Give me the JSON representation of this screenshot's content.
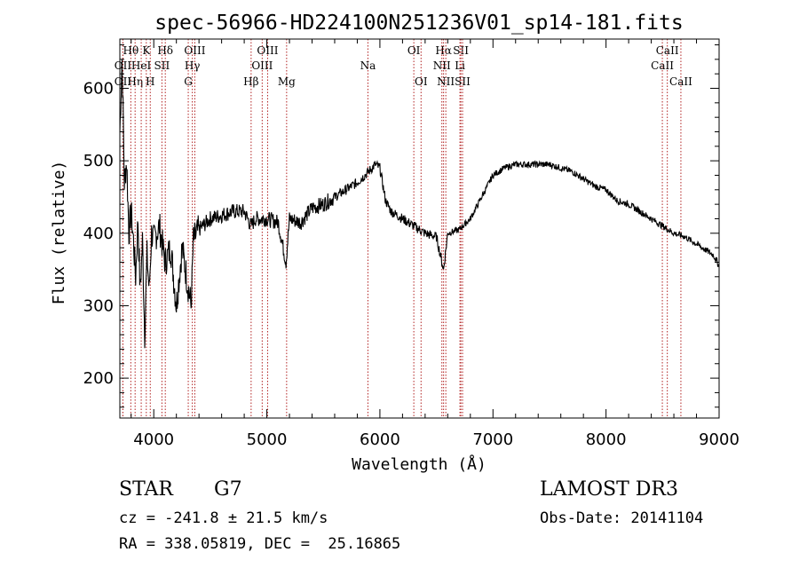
{
  "chart_data": {
    "type": "line",
    "title": "spec-56966-HD224100N251236V01_sp14-181.fits",
    "xlabel": "Wavelength (Å)",
    "ylabel": "Flux (relative)",
    "xlim": [
      3700,
      9000
    ],
    "ylim": [
      145,
      668
    ],
    "xticks": [
      4000,
      5000,
      6000,
      7000,
      8000,
      9000
    ],
    "yticks": [
      200,
      300,
      400,
      500,
      600
    ],
    "grid": false,
    "series": [
      {
        "name": "spectrum",
        "x": [
          3700,
          3720,
          3740,
          3760,
          3780,
          3800,
          3820,
          3840,
          3860,
          3880,
          3900,
          3920,
          3940,
          3960,
          3980,
          4000,
          4050,
          4100,
          4150,
          4200,
          4250,
          4300,
          4330,
          4350,
          4400,
          4500,
          4600,
          4700,
          4800,
          4860,
          4900,
          5000,
          5100,
          5170,
          5200,
          5300,
          5400,
          5500,
          5600,
          5700,
          5800,
          5900,
          5960,
          6000,
          6050,
          6100,
          6200,
          6300,
          6400,
          6500,
          6563,
          6600,
          6700,
          6800,
          6900,
          7000,
          7100,
          7200,
          7300,
          7400,
          7500,
          7600,
          7700,
          7800,
          7900,
          8000,
          8100,
          8200,
          8300,
          8400,
          8500,
          8600,
          8700,
          8800,
          8900,
          8950,
          9000
        ],
        "y": [
          540,
          640,
          470,
          500,
          400,
          430,
          390,
          340,
          420,
          320,
          390,
          260,
          370,
          320,
          400,
          390,
          410,
          360,
          380,
          300,
          380,
          330,
          300,
          390,
          405,
          420,
          425,
          430,
          430,
          410,
          420,
          420,
          415,
          360,
          420,
          415,
          435,
          440,
          450,
          460,
          470,
          485,
          495,
          490,
          445,
          430,
          420,
          410,
          400,
          395,
          350,
          400,
          405,
          420,
          450,
          480,
          490,
          495,
          495,
          495,
          495,
          490,
          485,
          475,
          465,
          460,
          445,
          440,
          430,
          420,
          410,
          400,
          395,
          385,
          375,
          370,
          355
        ]
      }
    ],
    "lines": [
      {
        "name": "Hθ",
        "x": 3797,
        "row": 1
      },
      {
        "name": "OII",
        "x": 3727,
        "row": 2
      },
      {
        "name": "OII",
        "x": 3727,
        "row": 3
      },
      {
        "name": "Hη",
        "x": 3835,
        "row": 3
      },
      {
        "name": "K",
        "x": 3934,
        "row": 1
      },
      {
        "name": "HeI",
        "x": 3889,
        "row": 2
      },
      {
        "name": "SII",
        "x": 4072,
        "row": 2
      },
      {
        "name": "H",
        "x": 3969,
        "row": 3
      },
      {
        "name": "Hδ",
        "x": 4102,
        "row": 1
      },
      {
        "name": "OIII",
        "x": 4363,
        "row": 1
      },
      {
        "name": "Hγ",
        "x": 4341,
        "row": 2
      },
      {
        "name": "G",
        "x": 4305,
        "row": 3
      },
      {
        "name": "Hβ",
        "x": 4861,
        "row": 3
      },
      {
        "name": "OIII",
        "x": 5007,
        "row": 1
      },
      {
        "name": "OIII",
        "x": 4959,
        "row": 2
      },
      {
        "name": "Mg",
        "x": 5175,
        "row": 3
      },
      {
        "name": "Na",
        "x": 5894,
        "row": 2
      },
      {
        "name": "OI",
        "x": 6300,
        "row": 1
      },
      {
        "name": "OI",
        "x": 6364,
        "row": 3
      },
      {
        "name": "Hα",
        "x": 6563,
        "row": 1
      },
      {
        "name": "SII",
        "x": 6716,
        "row": 1
      },
      {
        "name": "NII",
        "x": 6548,
        "row": 2
      },
      {
        "name": "Li",
        "x": 6708,
        "row": 2
      },
      {
        "name": "NII",
        "x": 6583,
        "row": 3
      },
      {
        "name": "SII",
        "x": 6731,
        "row": 3
      },
      {
        "name": "CaII",
        "x": 8542,
        "row": 1
      },
      {
        "name": "CaII",
        "x": 8498,
        "row": 2
      },
      {
        "name": "CaII",
        "x": 8662,
        "row": 3
      }
    ]
  },
  "info": {
    "class": "STAR",
    "subclass": "G7",
    "cz": "cz = -241.8 ± 21.5 km/s",
    "radec": "RA = 338.05819, DEC =  25.16865",
    "survey": "LAMOST DR3",
    "obsdate": "Obs-Date: 20141104"
  }
}
